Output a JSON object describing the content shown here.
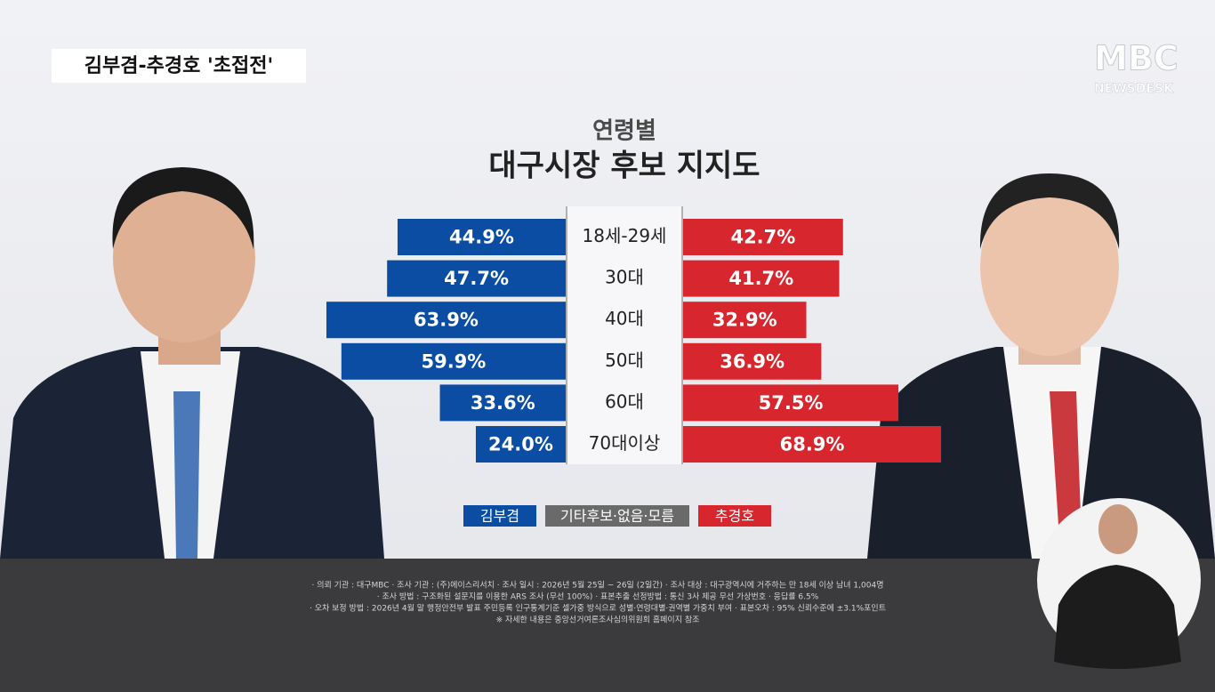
{
  "header": {
    "tag": "김부겸-추경호 '초접전'",
    "logo": "MBC",
    "logo_sub": "NEWSDESK"
  },
  "chart_data": {
    "type": "butterfly",
    "title": "연령별",
    "subtitle": "대구시장 후보 지지도",
    "categories": [
      "18세-29세",
      "30대",
      "40대",
      "50대",
      "60대",
      "70대이상"
    ],
    "series": [
      {
        "name": "김부겸",
        "color": "#0b4da2",
        "values": [
          44.9,
          47.7,
          63.9,
          59.9,
          33.6,
          24.0
        ],
        "value_labels": [
          "44.9%",
          "47.7%",
          "63.9%",
          "59.9%",
          "33.6%",
          "24.0%"
        ]
      },
      {
        "name": "기타후보·없음·모름",
        "color": "#6a6a6a",
        "values": [
          null,
          null,
          null,
          null,
          null,
          null
        ]
      },
      {
        "name": "추경호",
        "color": "#d8262e",
        "values": [
          42.7,
          41.7,
          32.9,
          36.9,
          57.5,
          68.9
        ],
        "value_labels": [
          "42.7%",
          "41.7%",
          "32.9%",
          "36.9%",
          "57.5%",
          "68.9%"
        ]
      }
    ]
  },
  "footnote": [
    "· 의뢰 기관 : 대구MBC · 조사 기관 : (주)에이스리서치 · 조사 일시 : 2026년 5월 25일 ~ 26일 (2일간) · 조사 대상 : 대구광역시에 거주하는 만 18세 이상 남녀 1,004명",
    "· 조사 방법 : 구조화된 설문지를 이용한 ARS 조사 (무선 100%) · 표본추출 선정방법 : 통신 3사 제공 무선 가상번호 · 응답률 6.5%",
    "· 오차 보정 방법 : 2026년 4월 말 행정안전부 발표 주민등록 인구통계기준 셀가중 방식으로 성별·연령대별·권역별 가중치 부여 · 표본오차 : 95% 신뢰수준에 ±3.1%포인트",
    "※ 자세한 내용은 중앙선거여론조사심의위원회 홈페이지 참조"
  ]
}
